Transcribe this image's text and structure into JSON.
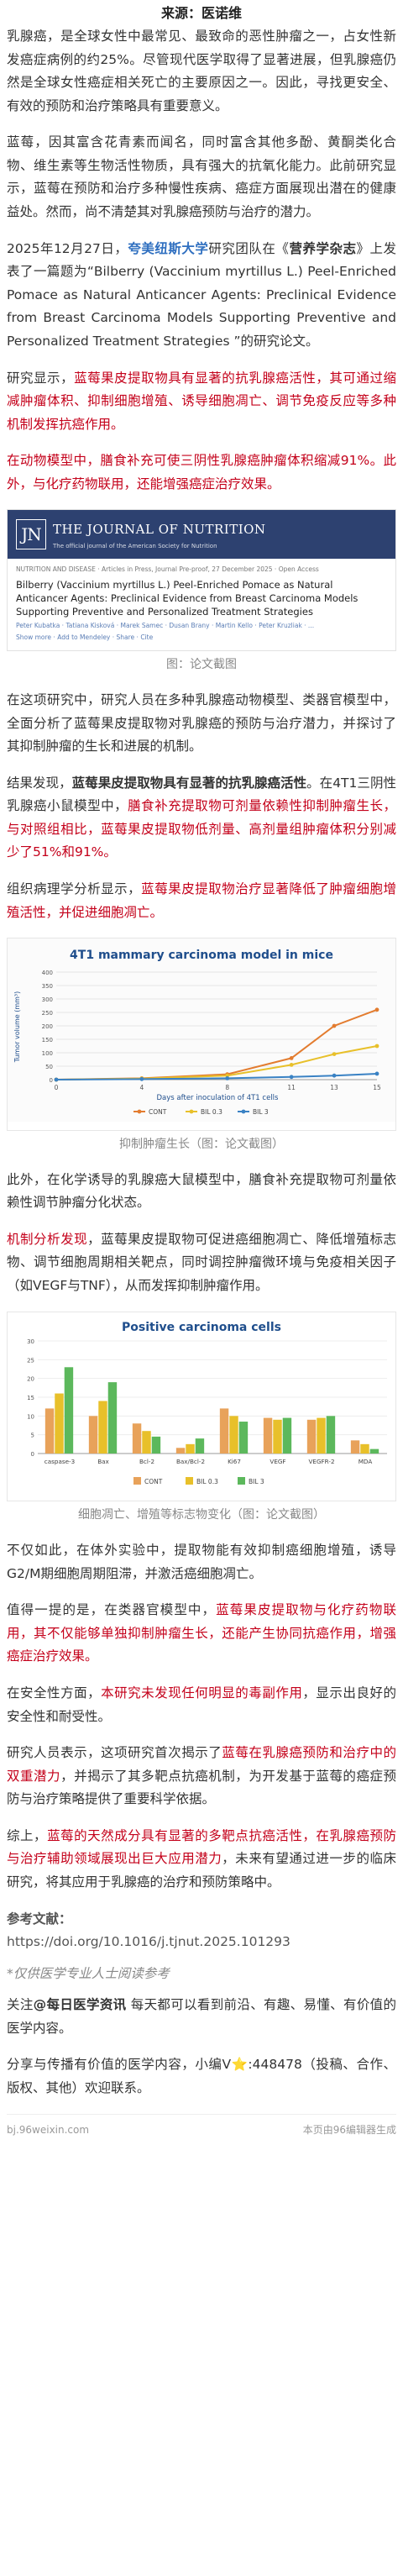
{
  "source": "来源：医诺维",
  "p1": "乳腺癌，是全球女性中最常见、最致命的恶性肿瘤之一，占女性新发癌症病例的约25%。尽管现代医学取得了显著进展，但乳腺癌仍然是全球女性癌症相关死亡的主要原因之一。因此，寻找更安全、有效的预防和治疗策略具有重要意义。",
  "p2": "蓝莓，因其富含花青素而闻名，同时富含其他多酚、黄酮类化合物、维生素等生物活性物质，具有强大的抗氧化能力。此前研究显示，蓝莓在预防和治疗多种慢性疾病、癌症方面展现出潜在的健康益处。然而，尚不清楚其对乳腺癌预防与治疗的潜力。",
  "p3": {
    "a": "2025年12月27日，",
    "team": "夸美纽斯大学",
    "b": "研究团队在《",
    "journal": "营养学杂志",
    "c": "》上发表了一篇题为“Bilberry (Vaccinium myrtillus L.) Peel-Enriched Pomace as Natural Anticancer Agents: Preclinical Evidence from Breast Carcinoma Models Supporting Preventive and Personalized Treatment Strategies ”的研究论文。"
  },
  "p4": {
    "a": "研究显示，",
    "red": "蓝莓果皮提取物具有显著的抗乳腺癌活性，其可通过缩减肿瘤体积、抑制细胞增殖、诱导细胞凋亡、调节免疫反应等多种机制发挥抗癌作用。"
  },
  "p5": {
    "red": "在动物模型中，膳食补充可使三阴性乳腺癌肿瘤体积缩减91%。此外，与化疗药物联用，还能增强癌症治疗效果。"
  },
  "journal_shot": {
    "logo": "JN",
    "name": "THE JOURNAL OF NUTRITION",
    "tagline": "The official journal of the American Society for Nutrition",
    "meta": "NUTRITION AND DISEASE · Articles in Press, Journal Pre-proof, 27 December 2025 · Open Access",
    "article_title": "Bilberry (Vaccinium myrtillus L.) Peel-Enriched Pomace as Natural Anticancer Agents: Preclinical Evidence from Breast Carcinoma Models Supporting Preventive and Personalized Treatment Strategies",
    "authors": "Peter Kubatka · Tatiana Kisková · Marek Samec · Dusan Brany · Martin Kello · Peter Kruzliak · ...",
    "links": "Show more · Add to Mendeley · Share · Cite"
  },
  "caption1": "图：论文截图",
  "p6": "在这项研究中，研究人员在多种乳腺癌动物模型、类器官模型中，全面分析了蓝莓果皮提取物对乳腺癌的预防与治疗潜力，并探讨了其抑制肿瘤的生长和进展的机制。",
  "p7": {
    "a": "结果发现，",
    "b": "蓝莓果皮提取物具有显著的抗乳腺癌活性",
    "c": "。在4T1三阴性乳腺癌小鼠模型中，",
    "red": "膳食补充提取物可剂量依赖性抑制肿瘤生长，与对照组相比，蓝莓果皮提取物低剂量、高剂量组肿瘤体积分别减少了51%和91%。"
  },
  "p8": {
    "a": "组织病理学分析显示，",
    "red": "蓝莓果皮提取物治疗显著降低了肿瘤细胞增殖活性，并促进细胞凋亡。"
  },
  "chart1": {
    "title": "4T1 mammary carcinoma model in mice",
    "xlabel": "Days after inoculation of 4T1 cells",
    "ylabel": "Tumor volume (mm³)"
  },
  "caption2": "抑制肿瘤生长（图：论文截图）",
  "p9": "此外，在化学诱导的乳腺癌大鼠模型中，膳食补充提取物可剂量依赖性调节肿瘤分化状态。",
  "p10": {
    "red": "机制分析发现",
    "a": "，蓝莓果皮提取物可促进癌细胞凋亡、降低增殖标志物、调节细胞周期相关靶点，同时调控肿瘤微环境与免疫相关因子（如VEGF与TNF），从而发挥抑制肿瘤作用。"
  },
  "chart2": {
    "title": "Positive carcinoma cells"
  },
  "caption3": "细胞凋亡、增殖等标志物变化（图：论文截图）",
  "p11": "不仅如此，在体外实验中，提取物能有效抑制癌细胞增殖，诱导G2/M期细胞周期阻滞，并激活癌细胞凋亡。",
  "p12": {
    "a": "值得一提的是，在类器官模型中，",
    "red": "蓝莓果皮提取物与化疗药物联用，其不仅能够单独抑制肿瘤生长，还能产生协同抗癌作用，增强癌症治疗效果。"
  },
  "p13": {
    "a": "在安全性方面，",
    "red": "本研究未发现任何明显的毒副作用",
    "b": "，显示出良好的安全性和耐受性。"
  },
  "p14": {
    "a": "研究人员表示，这项研究首次揭示了",
    "red": "蓝莓在乳腺癌预防和治疗中的双重潜力",
    "b": "，并揭示了其多靶点抗癌机制，为开发基于蓝莓的癌症预防与治疗策略提供了重要科学依据。"
  },
  "p15": {
    "a": "综上，",
    "red": "蓝莓的天然成分具有显著的多靶点抗癌活性，在乳腺癌预防与治疗辅助领域展现出巨大应用潜力",
    "b": "，未来有望通过进一步的临床研究，将其应用于乳腺癌的治疗和预防策略中。"
  },
  "ref_title": "参考文献：",
  "ref_url": "https://doi.org/10.1016/j.tjnut.2025.101293",
  "notice": "*仅供医学专业人士阅读参考",
  "follow": {
    "a": "关注",
    "b": "@每日医学资讯",
    "c": " 每天都可以看到前沿、有趣、易懂、有价值的医学内容。"
  },
  "share": "分享与传播有价值的医学内容，小编V⭐:448478（投稿、合作、版权、其他）欢迎联系。",
  "footer_left": "bj.96weixin.com",
  "footer_right": "本页由96编辑器生成",
  "chart_data": [
    {
      "type": "line",
      "title": "4T1 mammary carcinoma model in mice",
      "xlabel": "Days after inoculation of 4T1 cells",
      "ylabel": "Tumor volume (mm³)",
      "x": [
        0,
        4,
        8,
        11,
        13,
        15
      ],
      "ylim": [
        0,
        400
      ],
      "yticks": [
        0,
        50,
        100,
        150,
        200,
        250,
        300,
        350,
        400
      ],
      "legend_position": "bottom",
      "series": [
        {
          "name": "CONT",
          "values": [
            0,
            5,
            20,
            80,
            200,
            260
          ],
          "color": "#e37c2f"
        },
        {
          "name": "BIL 0.3",
          "values": [
            0,
            4,
            15,
            55,
            95,
            125
          ],
          "color": "#e8c02a"
        },
        {
          "name": "BIL 3",
          "values": [
            0,
            2,
            5,
            10,
            15,
            22
          ],
          "color": "#3a82c4"
        }
      ]
    },
    {
      "type": "bar",
      "title": "Positive carcinoma cells",
      "categories": [
        "caspase-3",
        "Bax",
        "Bcl-2",
        "Bax/Bcl-2",
        "Ki67",
        "VEGF",
        "VEGFR-2",
        "MDA"
      ],
      "ylim": [
        0,
        30
      ],
      "yticks": [
        0,
        5,
        10,
        15,
        20,
        25,
        30
      ],
      "legend_position": "bottom",
      "series": [
        {
          "name": "CONT",
          "values": [
            12,
            10,
            8,
            1.5,
            12,
            9.5,
            9,
            3.5
          ],
          "color": "#e8a25a"
        },
        {
          "name": "BIL 0.3",
          "values": [
            16,
            14,
            6,
            2.5,
            10,
            9,
            9.5,
            2.5
          ],
          "color": "#e8c02a"
        },
        {
          "name": "BIL 3",
          "values": [
            23,
            19,
            4.5,
            4,
            8.5,
            9.5,
            10,
            1.2
          ],
          "color": "#5cb85c"
        }
      ]
    }
  ]
}
